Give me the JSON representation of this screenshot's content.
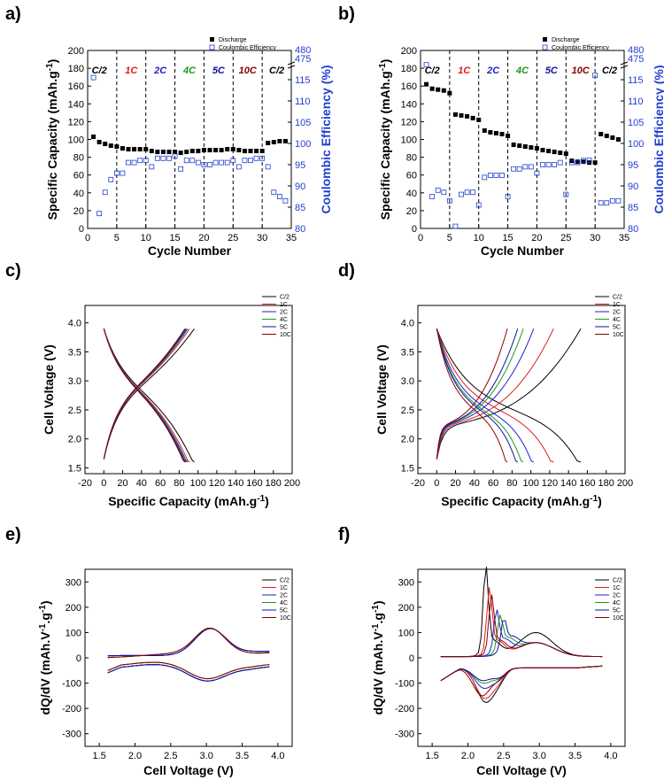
{
  "panels": [
    {
      "id": "a",
      "label": "a)"
    },
    {
      "id": "b",
      "label": "b)"
    },
    {
      "id": "c",
      "label": "c)"
    },
    {
      "id": "d",
      "label": "d)"
    },
    {
      "id": "e",
      "label": "e)"
    },
    {
      "id": "f",
      "label": "f)"
    }
  ],
  "colors": {
    "C/2": "#000000",
    "1C": "#e01b1b",
    "2C": "#2020c8",
    "4C": "#1a9a1a",
    "5C": "#1010a0",
    "10C": "#8b0000",
    "ce": "#1f3fd1"
  },
  "chart_data": [
    {
      "id": "a",
      "type": "scatter",
      "xlabel": "Cycle Number",
      "ylabel": "Specific Capacity (mAh.g-1)",
      "y2label": "Coulombic Efficiency (%)",
      "xlim": [
        0,
        35
      ],
      "ylim": [
        0,
        200
      ],
      "y2lim": [
        80,
        120
      ],
      "xticks": [
        0,
        5,
        10,
        15,
        20,
        25,
        30,
        35
      ],
      "yticks": [
        0,
        20,
        40,
        60,
        80,
        100,
        120,
        140,
        160,
        180,
        200
      ],
      "y2ticks": [
        80,
        85,
        90,
        95,
        100,
        105,
        110,
        115
      ],
      "y2break_ticks": [
        "475",
        "480"
      ],
      "legend": [
        "Discharge",
        "Coulombic Efficiency"
      ],
      "rate_labels": [
        {
          "t": "C/2",
          "x": 2,
          "c": "C/2"
        },
        {
          "t": "1C",
          "x": 7.5,
          "c": "1C"
        },
        {
          "t": "2C",
          "x": 12.5,
          "c": "2C"
        },
        {
          "t": "4C",
          "x": 17.5,
          "c": "4C"
        },
        {
          "t": "5C",
          "x": 22.5,
          "c": "5C"
        },
        {
          "t": "10C",
          "x": 27.5,
          "c": "10C"
        },
        {
          "t": "C/2",
          "x": 32.5,
          "c": "C/2"
        }
      ],
      "dividers": [
        5,
        10,
        15,
        20,
        25,
        30
      ],
      "discharge": {
        "x": [
          1,
          2,
          3,
          4,
          5,
          6,
          7,
          8,
          9,
          10,
          11,
          12,
          13,
          14,
          15,
          16,
          17,
          18,
          19,
          20,
          21,
          22,
          23,
          24,
          25,
          26,
          27,
          28,
          29,
          30,
          31,
          32,
          33,
          34
        ],
        "y": [
          103,
          97,
          95,
          93,
          92,
          90,
          89,
          89,
          89,
          89,
          87,
          86,
          86,
          86,
          86,
          85,
          86,
          87,
          87,
          88,
          88,
          88,
          88,
          89,
          89,
          88,
          87,
          87,
          87,
          87,
          96,
          97,
          98,
          98
        ]
      },
      "ce": {
        "x": [
          1,
          2,
          3,
          4,
          5,
          6,
          7,
          8,
          9,
          10,
          11,
          12,
          13,
          14,
          15,
          16,
          17,
          18,
          19,
          20,
          21,
          22,
          23,
          24,
          25,
          26,
          27,
          28,
          29,
          30,
          31,
          32,
          33,
          34
        ],
        "y": [
          115.5,
          83.5,
          88.5,
          91.5,
          93,
          93,
          95.5,
          95.5,
          96,
          96,
          94.5,
          96.5,
          96.5,
          96.5,
          97,
          94,
          96,
          96,
          95.5,
          95,
          95,
          95.5,
          95.5,
          95.5,
          96,
          94.5,
          96,
          96,
          96.5,
          96.5,
          94.5,
          88.5,
          87.5,
          86.5
        ]
      }
    },
    {
      "id": "b",
      "type": "scatter",
      "xlabel": "Cycle Number",
      "ylabel": "Specific Capacity (mAh.g-1)",
      "y2label": "Coulombic Efficiency (%)",
      "xlim": [
        0,
        35
      ],
      "ylim": [
        0,
        200
      ],
      "y2lim": [
        80,
        120
      ],
      "xticks": [
        0,
        5,
        10,
        15,
        20,
        25,
        30,
        35
      ],
      "yticks": [
        0,
        20,
        40,
        60,
        80,
        100,
        120,
        140,
        160,
        180,
        200
      ],
      "y2ticks": [
        80,
        85,
        90,
        95,
        100,
        105,
        110,
        115
      ],
      "y2break_ticks": [
        "475",
        "480"
      ],
      "legend": [
        "Discharge",
        "Coulombic Efficiency"
      ],
      "rate_labels": [
        {
          "t": "C/2",
          "x": 2,
          "c": "C/2"
        },
        {
          "t": "1C",
          "x": 7.5,
          "c": "1C"
        },
        {
          "t": "2C",
          "x": 12.5,
          "c": "2C"
        },
        {
          "t": "4C",
          "x": 17.5,
          "c": "4C"
        },
        {
          "t": "5C",
          "x": 22.5,
          "c": "5C"
        },
        {
          "t": "10C",
          "x": 27.5,
          "c": "10C"
        },
        {
          "t": "C/2",
          "x": 32.5,
          "c": "C/2"
        }
      ],
      "dividers": [
        5,
        10,
        15,
        20,
        25,
        30
      ],
      "discharge": {
        "x": [
          1,
          2,
          3,
          4,
          5,
          6,
          7,
          8,
          9,
          10,
          11,
          12,
          13,
          14,
          15,
          16,
          17,
          18,
          19,
          20,
          21,
          22,
          23,
          24,
          25,
          26,
          27,
          28,
          29,
          30,
          31,
          32,
          33,
          34
        ],
        "y": [
          162,
          157,
          156,
          155,
          152,
          128,
          127,
          126,
          124,
          122,
          110,
          108,
          107,
          106,
          104,
          94,
          93,
          92,
          91,
          90,
          88,
          87,
          86,
          85,
          84,
          76,
          75,
          75,
          74,
          74,
          106,
          104,
          102,
          100
        ]
      },
      "ce": {
        "x": [
          1,
          2,
          3,
          4,
          5,
          6,
          7,
          8,
          9,
          10,
          11,
          12,
          13,
          14,
          15,
          16,
          17,
          18,
          19,
          20,
          21,
          22,
          23,
          24,
          25,
          26,
          27,
          28,
          29,
          30,
          31,
          32,
          33,
          34
        ],
        "y": [
          118.5,
          87.5,
          89,
          88.5,
          86.5,
          80.5,
          88,
          88.5,
          88.5,
          85.5,
          92,
          92.5,
          92.5,
          92.5,
          87.5,
          94,
          94,
          94.5,
          94.5,
          93,
          95,
          95,
          95,
          95.5,
          88,
          95.5,
          95.5,
          96,
          96,
          116,
          86,
          86,
          86.5,
          86.5
        ]
      }
    },
    {
      "id": "c",
      "type": "line",
      "xlabel": "Specific Capacity (mAh.g-1)",
      "ylabel": "Cell Voltage (V)",
      "xlim": [
        -20,
        200
      ],
      "ylim": [
        1.4,
        4.3
      ],
      "xticks": [
        -20,
        0,
        20,
        40,
        60,
        80,
        100,
        120,
        140,
        160,
        180,
        200
      ],
      "yticks": [
        1.5,
        2.0,
        2.5,
        3.0,
        3.5,
        4.0
      ],
      "series": [
        {
          "name": "C/2",
          "cap": 96
        },
        {
          "name": "1C",
          "cap": 91
        },
        {
          "name": "2C",
          "cap": 89
        },
        {
          "name": "4C",
          "cap": 88
        },
        {
          "name": "5C",
          "cap": 87
        },
        {
          "name": "10C",
          "cap": 86
        }
      ]
    },
    {
      "id": "d",
      "type": "line",
      "xlabel": "Specific Capacity (mAh.g-1)",
      "ylabel": "Cell Voltage (V)",
      "xlim": [
        -20,
        200
      ],
      "ylim": [
        1.4,
        4.3
      ],
      "xticks": [
        -20,
        0,
        20,
        40,
        60,
        80,
        100,
        120,
        140,
        160,
        180,
        200
      ],
      "yticks": [
        1.5,
        2.0,
        2.5,
        3.0,
        3.5,
        4.0
      ],
      "series": [
        {
          "name": "C/2",
          "cap": 153
        },
        {
          "name": "1C",
          "cap": 124
        },
        {
          "name": "2C",
          "cap": 103
        },
        {
          "name": "4C",
          "cap": 92
        },
        {
          "name": "5C",
          "cap": 86
        },
        {
          "name": "10C",
          "cap": 75
        }
      ]
    },
    {
      "id": "e",
      "type": "line",
      "xlabel": "Cell Voltage (V)",
      "ylabel": "dQ/dV (mAh.V-1.g-1)",
      "xlim": [
        1.3,
        4.2
      ],
      "ylim": [
        -350,
        350
      ],
      "xticks": [
        1.5,
        2.0,
        2.5,
        3.0,
        3.5,
        4.0
      ],
      "yticks": [
        -300,
        -200,
        -100,
        0,
        100,
        200,
        300
      ],
      "series": [
        {
          "name": "C/2"
        },
        {
          "name": "1C"
        },
        {
          "name": "2C"
        },
        {
          "name": "4C"
        },
        {
          "name": "5C"
        },
        {
          "name": "10C"
        }
      ]
    },
    {
      "id": "f",
      "type": "line",
      "xlabel": "Cell Voltage (V)",
      "ylabel": "dQ/dV (mAh.V-1.g-1)",
      "xlim": [
        1.3,
        4.2
      ],
      "ylim": [
        -350,
        350
      ],
      "xticks": [
        1.5,
        2.0,
        2.5,
        3.0,
        3.5,
        4.0
      ],
      "yticks": [
        -300,
        -200,
        -100,
        0,
        100,
        200,
        300
      ],
      "series": [
        {
          "name": "C/2",
          "peak": 325,
          "pv": 2.25,
          "neg": -175
        },
        {
          "name": "1C",
          "peak": 235,
          "pv": 2.3,
          "neg": -160
        },
        {
          "name": "2C",
          "peak": 145,
          "pv": 2.4,
          "neg": -120
        },
        {
          "name": "4C",
          "peak": 120,
          "pv": 2.45,
          "neg": -100
        },
        {
          "name": "5C",
          "peak": 105,
          "pv": 2.5,
          "neg": -90
        },
        {
          "name": "10C",
          "peak": 205,
          "pv": 2.33,
          "neg": -150
        }
      ]
    }
  ]
}
